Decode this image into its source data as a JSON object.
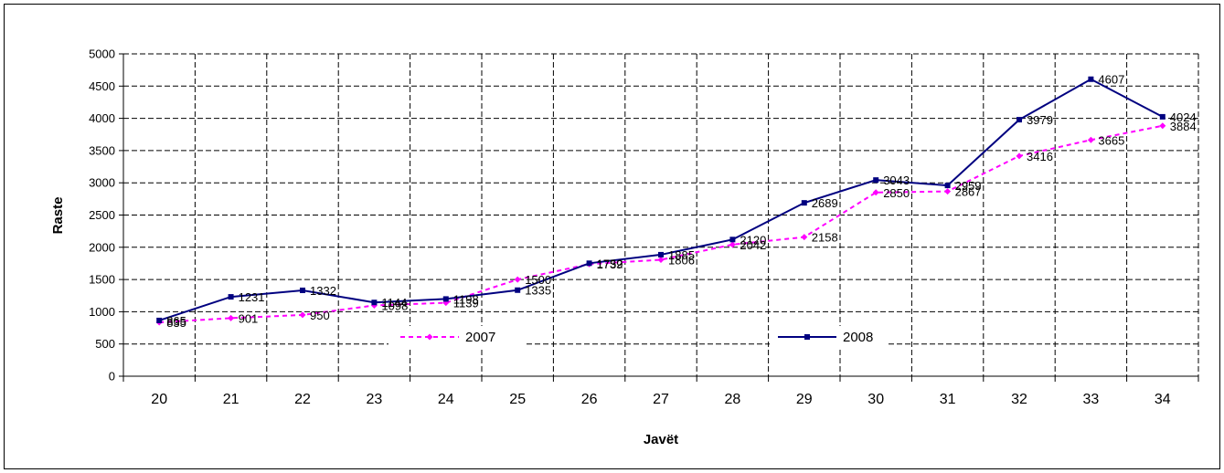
{
  "chart_data": {
    "type": "line",
    "xlabel": "Javët",
    "ylabel": "Raste",
    "categories": [
      "20",
      "21",
      "22",
      "23",
      "24",
      "25",
      "26",
      "27",
      "28",
      "29",
      "30",
      "31",
      "32",
      "33",
      "34"
    ],
    "ylim": [
      0,
      5000
    ],
    "yticks": [
      "0",
      "500",
      "1000",
      "1500",
      "2000",
      "2500",
      "3000",
      "3500",
      "4000",
      "4500",
      "5000"
    ],
    "grid": true,
    "legend_placement": "inside-bottom",
    "series": [
      {
        "name": "2007",
        "color": "#FF00FF",
        "line_style": "dashed",
        "marker": "diamond",
        "values": [
          835,
          901,
          950,
          1098,
          1139,
          1500,
          1739,
          1806,
          2042,
          2158,
          2850,
          2867,
          3416,
          3665,
          3884
        ],
        "labels": [
          "835",
          "901",
          "950",
          "1098",
          "1139",
          "1500",
          "1739",
          "1806",
          "2042",
          "2158",
          "2850",
          "2867",
          "3416",
          "3665",
          "3884"
        ]
      },
      {
        "name": "2008",
        "color": "#000080",
        "line_style": "solid",
        "marker": "square",
        "values": [
          865,
          1231,
          1332,
          1144,
          1198,
          1335,
          1752,
          1885,
          2120,
          2689,
          3043,
          2959,
          3979,
          4607,
          4024
        ],
        "labels": [
          "865",
          "1231",
          "1332",
          "1144",
          "1198",
          "1335",
          "1752",
          "1885",
          "2120",
          "2689",
          "3043",
          "2959",
          "3979",
          "4607",
          "4024"
        ]
      }
    ]
  }
}
